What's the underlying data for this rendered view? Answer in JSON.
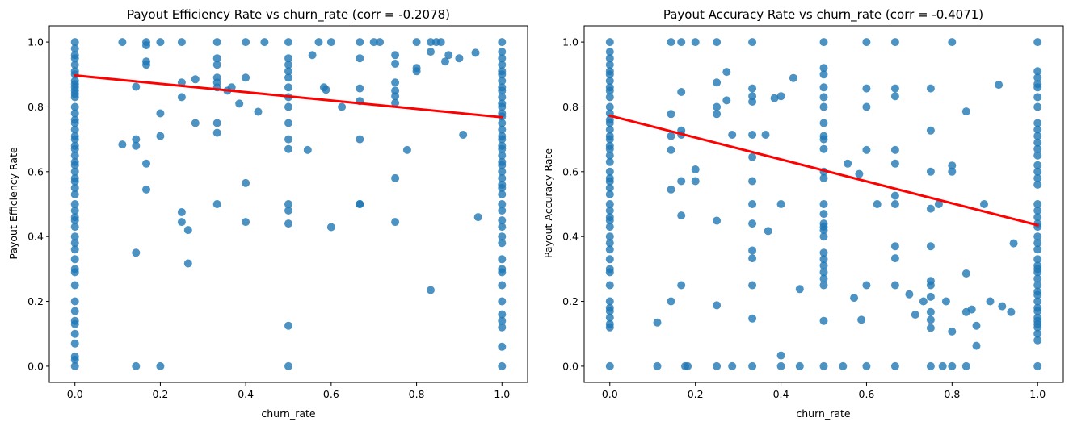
{
  "chart_data": [
    {
      "type": "scatter",
      "title": "Payout Efficiency Rate vs churn_rate (corr = -0.2078)",
      "xlabel": "churn_rate",
      "ylabel": "Payout Efficiency Rate",
      "xlim": [
        -0.06,
        1.06
      ],
      "ylim": [
        -0.05,
        1.05
      ],
      "xticks": [
        "0.0",
        "0.2",
        "0.4",
        "0.6",
        "0.8",
        "1.0"
      ],
      "yticks": [
        "0.0",
        "0.2",
        "0.4",
        "0.6",
        "0.8",
        "1.0"
      ],
      "grid": false,
      "point_color": "#1f77b4",
      "line_color": "#ff0000",
      "regression": {
        "x": [
          0,
          1
        ],
        "y": [
          0.897,
          0.768
        ]
      },
      "columns": [
        {
          "x": 0.0,
          "y": [
            1.0,
            0.98,
            0.96,
            0.95,
            0.93,
            0.91,
            0.9,
            0.88,
            0.87,
            0.86,
            0.85,
            0.84,
            0.83,
            0.8,
            0.78,
            0.76,
            0.75,
            0.73,
            0.71,
            0.7,
            0.68,
            0.67,
            0.65,
            0.63,
            0.62,
            0.6,
            0.58,
            0.57,
            0.55,
            0.53,
            0.5,
            0.48,
            0.46,
            0.45,
            0.43,
            0.4,
            0.38,
            0.36,
            0.33,
            0.3,
            0.29,
            0.25,
            0.2,
            0.17,
            0.14,
            0.13,
            0.1,
            0.07,
            0.03,
            0.02,
            0.0
          ]
        },
        {
          "x": 0.5,
          "y": [
            1.0,
            0.95,
            0.93,
            0.91,
            0.89,
            0.86,
            0.83,
            0.8,
            0.75,
            0.7,
            0.67,
            0.5,
            0.48,
            0.44,
            0.125,
            0.0
          ]
        },
        {
          "x": 1.0,
          "y": [
            1.0,
            0.97,
            0.95,
            0.93,
            0.91,
            0.9,
            0.88,
            0.86,
            0.85,
            0.83,
            0.81,
            0.8,
            0.78,
            0.77,
            0.75,
            0.73,
            0.71,
            0.7,
            0.68,
            0.67,
            0.65,
            0.63,
            0.62,
            0.6,
            0.58,
            0.56,
            0.55,
            0.53,
            0.5,
            0.48,
            0.45,
            0.43,
            0.4,
            0.38,
            0.33,
            0.3,
            0.29,
            0.25,
            0.2,
            0.16,
            0.14,
            0.12,
            0.06,
            0.0
          ]
        }
      ],
      "points": [
        [
          0.111,
          1.0
        ],
        [
          0.111,
          0.684
        ],
        [
          0.143,
          0.862
        ],
        [
          0.143,
          0.7
        ],
        [
          0.143,
          0.68
        ],
        [
          0.143,
          0.35
        ],
        [
          0.143,
          0.0
        ],
        [
          0.167,
          1.0
        ],
        [
          0.167,
          0.99
        ],
        [
          0.167,
          0.94
        ],
        [
          0.167,
          0.93
        ],
        [
          0.167,
          0.625
        ],
        [
          0.167,
          0.545
        ],
        [
          0.2,
          1.0
        ],
        [
          0.2,
          0.78
        ],
        [
          0.2,
          0.71
        ],
        [
          0.2,
          0.0
        ],
        [
          0.25,
          1.0
        ],
        [
          0.25,
          0.875
        ],
        [
          0.25,
          0.83
        ],
        [
          0.25,
          0.475
        ],
        [
          0.25,
          0.445
        ],
        [
          0.265,
          0.42
        ],
        [
          0.265,
          0.317
        ],
        [
          0.282,
          0.885
        ],
        [
          0.282,
          0.75
        ],
        [
          0.333,
          1.0
        ],
        [
          0.333,
          0.95
        ],
        [
          0.333,
          0.93
        ],
        [
          0.333,
          0.89
        ],
        [
          0.333,
          0.875
        ],
        [
          0.333,
          0.86
        ],
        [
          0.333,
          0.75
        ],
        [
          0.333,
          0.72
        ],
        [
          0.333,
          0.5
        ],
        [
          0.357,
          0.85
        ],
        [
          0.367,
          0.86
        ],
        [
          0.385,
          0.81
        ],
        [
          0.4,
          1.0
        ],
        [
          0.4,
          0.89
        ],
        [
          0.4,
          0.565
        ],
        [
          0.4,
          0.445
        ],
        [
          0.429,
          0.785
        ],
        [
          0.444,
          1.0
        ],
        [
          0.545,
          0.667
        ],
        [
          0.556,
          0.96
        ],
        [
          0.571,
          1.0
        ],
        [
          0.583,
          0.86
        ],
        [
          0.588,
          0.853
        ],
        [
          0.6,
          1.0
        ],
        [
          0.6,
          0.429
        ],
        [
          0.625,
          0.8
        ],
        [
          0.667,
          1.0
        ],
        [
          0.667,
          0.95
        ],
        [
          0.667,
          0.857
        ],
        [
          0.667,
          0.818
        ],
        [
          0.667,
          0.7
        ],
        [
          0.667,
          0.5
        ],
        [
          0.667,
          0.5
        ],
        [
          0.7,
          1.0
        ],
        [
          0.714,
          1.0
        ],
        [
          0.75,
          0.96
        ],
        [
          0.75,
          0.933
        ],
        [
          0.75,
          0.875
        ],
        [
          0.75,
          0.85
        ],
        [
          0.75,
          0.833
        ],
        [
          0.75,
          0.812
        ],
        [
          0.75,
          0.58
        ],
        [
          0.75,
          0.445
        ],
        [
          0.778,
          0.667
        ],
        [
          0.8,
          1.0
        ],
        [
          0.8,
          0.92
        ],
        [
          0.8,
          0.91
        ],
        [
          0.833,
          1.0
        ],
        [
          0.833,
          0.97
        ],
        [
          0.833,
          0.235
        ],
        [
          0.846,
          1.0
        ],
        [
          0.857,
          1.0
        ],
        [
          0.867,
          0.94
        ],
        [
          0.875,
          0.96
        ],
        [
          0.9,
          0.95
        ],
        [
          0.909,
          0.714
        ],
        [
          0.938,
          0.967
        ],
        [
          0.944,
          0.46
        ]
      ]
    },
    {
      "type": "scatter",
      "title": "Payout Accuracy Rate vs churn_rate (corr = -0.4071)",
      "xlabel": "churn_rate",
      "ylabel": "Payout Accuracy Rate",
      "xlim": [
        -0.06,
        1.06
      ],
      "ylim": [
        -0.05,
        1.05
      ],
      "xticks": [
        "0.0",
        "0.2",
        "0.4",
        "0.6",
        "0.8",
        "1.0"
      ],
      "yticks": [
        "0.0",
        "0.2",
        "0.4",
        "0.6",
        "0.8",
        "1.0"
      ],
      "grid": false,
      "point_color": "#1f77b4",
      "line_color": "#ff0000",
      "regression": {
        "x": [
          0,
          1
        ],
        "y": [
          0.773,
          0.435
        ]
      },
      "columns": [
        {
          "x": 0.0,
          "y": [
            1.0,
            0.97,
            0.95,
            0.93,
            0.91,
            0.9,
            0.88,
            0.86,
            0.85,
            0.83,
            0.8,
            0.78,
            0.76,
            0.75,
            0.73,
            0.71,
            0.7,
            0.68,
            0.67,
            0.65,
            0.63,
            0.6,
            0.58,
            0.57,
            0.55,
            0.53,
            0.5,
            0.48,
            0.46,
            0.45,
            0.43,
            0.4,
            0.38,
            0.36,
            0.33,
            0.3,
            0.29,
            0.25,
            0.2,
            0.18,
            0.17,
            0.15,
            0.13,
            0.12,
            0.0
          ]
        },
        {
          "x": 0.5,
          "y": [
            1.0,
            0.92,
            0.9,
            0.86,
            0.83,
            0.8,
            0.75,
            0.71,
            0.7,
            0.67,
            0.6,
            0.58,
            0.5,
            0.47,
            0.44,
            0.43,
            0.42,
            0.4,
            0.35,
            0.33,
            0.31,
            0.29,
            0.27,
            0.25,
            0.14,
            0.0
          ]
        },
        {
          "x": 1.0,
          "y": [
            1.0,
            0.91,
            0.89,
            0.87,
            0.86,
            0.83,
            0.8,
            0.75,
            0.73,
            0.71,
            0.69,
            0.67,
            0.65,
            0.62,
            0.6,
            0.58,
            0.56,
            0.5,
            0.48,
            0.46,
            0.44,
            0.43,
            0.4,
            0.38,
            0.36,
            0.33,
            0.31,
            0.3,
            0.29,
            0.27,
            0.25,
            0.23,
            0.22,
            0.2,
            0.18,
            0.17,
            0.15,
            0.14,
            0.13,
            0.12,
            0.1,
            0.08,
            0.0
          ]
        }
      ],
      "points": [
        [
          0.111,
          0.135
        ],
        [
          0.111,
          0.0
        ],
        [
          0.143,
          1.0
        ],
        [
          0.143,
          0.778
        ],
        [
          0.143,
          0.71
        ],
        [
          0.143,
          0.667
        ],
        [
          0.143,
          0.545
        ],
        [
          0.143,
          0.2
        ],
        [
          0.167,
          1.0
        ],
        [
          0.167,
          0.846
        ],
        [
          0.167,
          0.727
        ],
        [
          0.167,
          0.714
        ],
        [
          0.167,
          0.571
        ],
        [
          0.167,
          0.465
        ],
        [
          0.167,
          0.25
        ],
        [
          0.176,
          0.0
        ],
        [
          0.182,
          0.0
        ],
        [
          0.2,
          1.0
        ],
        [
          0.2,
          0.607
        ],
        [
          0.2,
          0.571
        ],
        [
          0.25,
          1.0
        ],
        [
          0.25,
          0.875
        ],
        [
          0.25,
          0.8
        ],
        [
          0.25,
          0.778
        ],
        [
          0.25,
          0.449
        ],
        [
          0.25,
          0.188
        ],
        [
          0.25,
          0.0
        ],
        [
          0.273,
          0.908
        ],
        [
          0.273,
          0.82
        ],
        [
          0.286,
          0.714
        ],
        [
          0.286,
          0.0
        ],
        [
          0.333,
          1.0
        ],
        [
          0.333,
          0.857
        ],
        [
          0.333,
          0.833
        ],
        [
          0.333,
          0.816
        ],
        [
          0.333,
          0.714
        ],
        [
          0.333,
          0.645
        ],
        [
          0.333,
          0.571
        ],
        [
          0.333,
          0.5
        ],
        [
          0.333,
          0.44
        ],
        [
          0.333,
          0.357
        ],
        [
          0.333,
          0.333
        ],
        [
          0.333,
          0.25
        ],
        [
          0.333,
          0.147
        ],
        [
          0.333,
          0.0
        ],
        [
          0.364,
          0.714
        ],
        [
          0.37,
          0.417
        ],
        [
          0.385,
          0.827
        ],
        [
          0.4,
          0.833
        ],
        [
          0.4,
          0.5
        ],
        [
          0.4,
          0.033
        ],
        [
          0.4,
          0.0
        ],
        [
          0.429,
          0.889
        ],
        [
          0.444,
          0.238
        ],
        [
          0.444,
          0.0
        ],
        [
          0.545,
          0.0
        ],
        [
          0.556,
          0.625
        ],
        [
          0.571,
          0.211
        ],
        [
          0.583,
          0.593
        ],
        [
          0.588,
          0.143
        ],
        [
          0.6,
          1.0
        ],
        [
          0.6,
          0.857
        ],
        [
          0.6,
          0.8
        ],
        [
          0.6,
          0.667
        ],
        [
          0.6,
          0.25
        ],
        [
          0.6,
          0.0
        ],
        [
          0.625,
          0.5
        ],
        [
          0.667,
          1.0
        ],
        [
          0.667,
          0.857
        ],
        [
          0.667,
          0.833
        ],
        [
          0.667,
          0.667
        ],
        [
          0.667,
          0.625
        ],
        [
          0.667,
          0.526
        ],
        [
          0.667,
          0.5
        ],
        [
          0.667,
          0.37
        ],
        [
          0.667,
          0.333
        ],
        [
          0.667,
          0.25
        ],
        [
          0.667,
          0.0
        ],
        [
          0.7,
          0.222
        ],
        [
          0.714,
          0.159
        ],
        [
          0.733,
          0.2
        ],
        [
          0.75,
          0.857
        ],
        [
          0.75,
          0.727
        ],
        [
          0.75,
          0.6
        ],
        [
          0.75,
          0.486
        ],
        [
          0.75,
          0.37
        ],
        [
          0.75,
          0.263
        ],
        [
          0.75,
          0.25
        ],
        [
          0.75,
          0.214
        ],
        [
          0.75,
          0.167
        ],
        [
          0.75,
          0.143
        ],
        [
          0.75,
          0.118
        ],
        [
          0.75,
          0.0
        ],
        [
          0.769,
          0.5
        ],
        [
          0.778,
          0.0
        ],
        [
          0.786,
          0.2
        ],
        [
          0.8,
          1.0
        ],
        [
          0.8,
          0.619
        ],
        [
          0.8,
          0.6
        ],
        [
          0.8,
          0.107
        ],
        [
          0.8,
          0.0
        ],
        [
          0.833,
          0.786
        ],
        [
          0.833,
          0.286
        ],
        [
          0.833,
          0.167
        ],
        [
          0.833,
          0.0
        ],
        [
          0.846,
          0.175
        ],
        [
          0.857,
          0.125
        ],
        [
          0.857,
          0.063
        ],
        [
          0.875,
          0.5
        ],
        [
          0.889,
          0.2
        ],
        [
          0.909,
          0.868
        ],
        [
          0.917,
          0.185
        ],
        [
          0.938,
          0.167
        ],
        [
          0.944,
          0.379
        ]
      ]
    }
  ]
}
